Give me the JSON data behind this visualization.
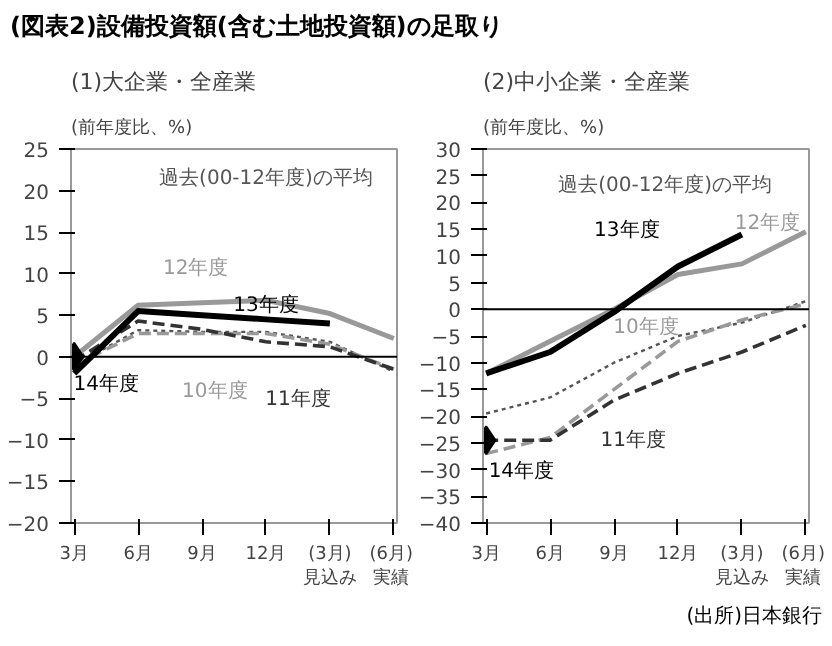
{
  "chart_data": [
    {
      "type": "line",
      "title": "(図表2)設備投資額(含む土地投資額)の足取り",
      "subtitle": "(1)大企業・全産業",
      "ylabel": "(前年度比、%)",
      "categories": [
        "3月",
        "6月",
        "9月",
        "12月",
        "(3月)\n見込み",
        "(6月)\n実績"
      ],
      "ylim": [
        -20,
        25
      ],
      "yticks": [
        -20,
        -15,
        -10,
        -5,
        0,
        5,
        10,
        15,
        20,
        25
      ],
      "grid": false,
      "legend": false,
      "ref_lines": [
        {
          "axis": "y",
          "value": 0,
          "color": "#000000"
        }
      ],
      "series": [
        {
          "name": "過去(00-12年度)の平均",
          "color": "#555555",
          "line_style": "dotted",
          "values": [
            -1,
            3.2,
            3,
            3,
            1.8,
            -1.8
          ]
        },
        {
          "name": "10年度",
          "color": "#999999",
          "line_style": "dashed",
          "values": [
            -1,
            2.8,
            2.8,
            2.8,
            1.5,
            -1.5
          ]
        },
        {
          "name": "11年度",
          "color": "#333333",
          "line_style": "dashed",
          "values": [
            -0.5,
            4.3,
            3.3,
            1.8,
            1.2,
            -1.5
          ]
        },
        {
          "name": "12年度",
          "color": "#999999",
          "line_style": "solid",
          "values": [
            0,
            6.2,
            6.5,
            6.8,
            5.2,
            2.2
          ]
        },
        {
          "name": "13年度",
          "color": "#000000",
          "line_style": "solid",
          "values": [
            -2,
            5.5,
            5,
            4.5,
            4,
            null
          ]
        },
        {
          "name": "14年度",
          "color": "#000000",
          "type": "scatter",
          "marker": "diamond",
          "values": [
            0,
            null,
            null,
            null,
            null,
            null
          ]
        }
      ]
    },
    {
      "type": "line",
      "subtitle": "(2)中小企業・全産業",
      "ylabel": "(前年度比、%)",
      "categories": [
        "3月",
        "6月",
        "9月",
        "12月",
        "(3月)\n見込み",
        "(6月)\n実績"
      ],
      "ylim": [
        -40,
        30
      ],
      "yticks": [
        -40,
        -35,
        -30,
        -25,
        -20,
        -15,
        -10,
        -5,
        0,
        5,
        10,
        15,
        20,
        25,
        30
      ],
      "grid": false,
      "legend": false,
      "ref_lines": [
        {
          "axis": "y",
          "value": 0,
          "color": "#000000"
        }
      ],
      "annotations": [
        "(出所)日本銀行"
      ],
      "series": [
        {
          "name": "過去(00-12年度)の平均",
          "color": "#555555",
          "line_style": "dotted",
          "values": [
            -19.5,
            -16.5,
            -10,
            -5,
            -2.5,
            1.5
          ]
        },
        {
          "name": "10年度",
          "color": "#999999",
          "line_style": "dashed",
          "values": [
            -27,
            -24,
            -15,
            -6,
            -2,
            1
          ]
        },
        {
          "name": "11年度",
          "color": "#333333",
          "line_style": "dashed",
          "values": [
            -24.5,
            -24.5,
            -17,
            -12,
            -8,
            -3
          ]
        },
        {
          "name": "12年度",
          "color": "#999999",
          "line_style": "solid",
          "values": [
            -12,
            -6,
            0,
            6.5,
            8.5,
            14.5
          ]
        },
        {
          "name": "13年度",
          "color": "#000000",
          "line_style": "solid",
          "values": [
            -12,
            -8,
            -0.5,
            8,
            14,
            null
          ]
        },
        {
          "name": "14年度",
          "color": "#000000",
          "type": "scatter",
          "marker": "diamond",
          "values": [
            -24.5,
            null,
            null,
            null,
            null,
            null
          ]
        }
      ]
    }
  ]
}
